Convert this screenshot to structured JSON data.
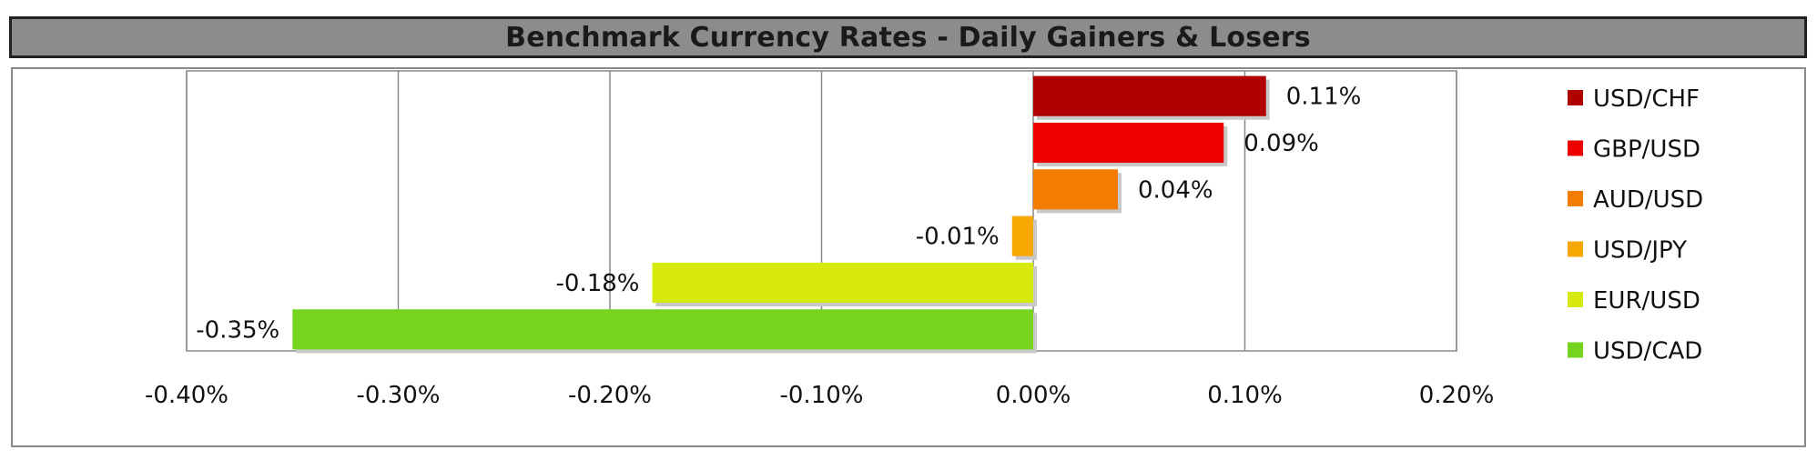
{
  "title": "Benchmark Currency Rates - Daily Gainers & Losers",
  "chart_data": {
    "type": "bar",
    "orientation": "horizontal",
    "title": "Benchmark Currency Rates - Daily Gainers & Losers",
    "xlabel": "",
    "ylabel": "",
    "xlim": [
      -0.4,
      0.2
    ],
    "x_ticks": [
      -0.4,
      -0.3,
      -0.2,
      -0.1,
      0.0,
      0.1,
      0.2
    ],
    "x_tick_labels": [
      "-0.40%",
      "-0.30%",
      "-0.20%",
      "-0.10%",
      "0.00%",
      "0.10%",
      "0.20%"
    ],
    "grid": true,
    "legend_position": "right",
    "categories": [
      "USD/CHF",
      "GBP/USD",
      "AUD/USD",
      "USD/JPY",
      "EUR/USD",
      "USD/CAD"
    ],
    "values": [
      0.11,
      0.09,
      0.04,
      -0.01,
      -0.18,
      -0.35
    ],
    "data_labels": [
      "0.11%",
      "0.09%",
      "0.04%",
      "-0.01%",
      "-0.18%",
      "-0.35%"
    ],
    "colors": [
      "#b00000",
      "#ee0000",
      "#f27d00",
      "#f7a800",
      "#d6e80c",
      "#76d420"
    ]
  }
}
